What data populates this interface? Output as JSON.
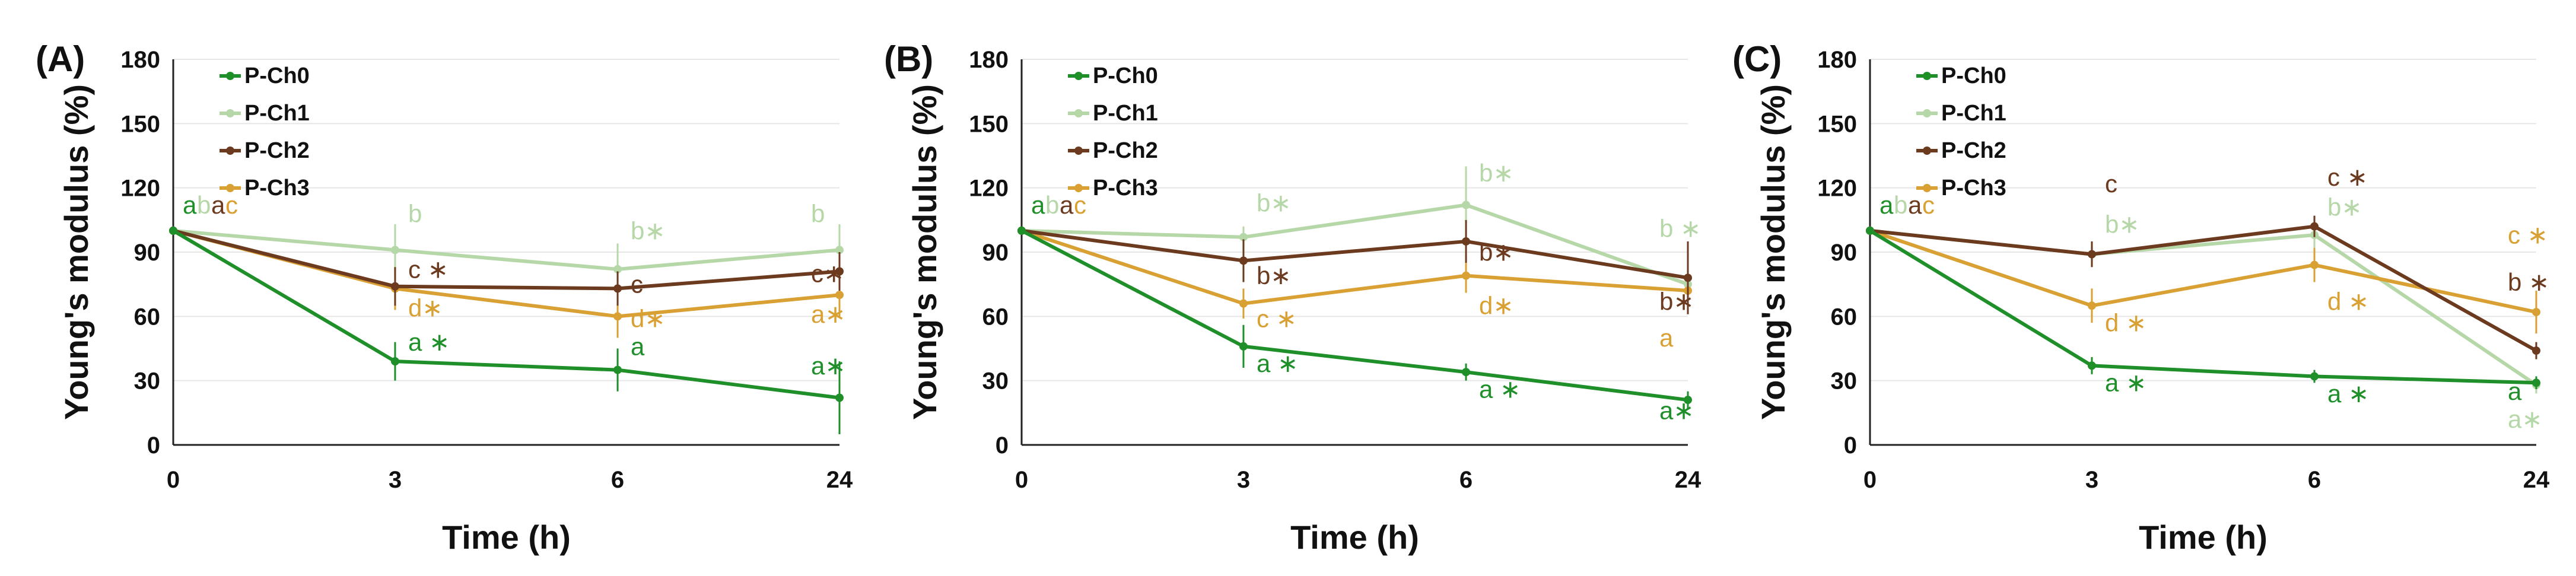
{
  "chart_data": [
    {
      "type": "line",
      "panel_label": "(A)",
      "xlabel": "Time (h)",
      "ylabel": "Young's modulus (%)",
      "ylim": [
        0,
        180
      ],
      "yticks": [
        "0",
        "30",
        "60",
        "90",
        "120",
        "150",
        "180"
      ],
      "x": [
        "0",
        "3",
        "6",
        "24"
      ],
      "grid": true,
      "legend_position": "top-left",
      "series": [
        {
          "name": "P-Ch0",
          "color": "#1f8f2a",
          "marker": "diamond",
          "values": [
            100,
            39,
            35,
            22
          ],
          "errors": [
            0,
            9,
            10,
            17
          ]
        },
        {
          "name": "P-Ch1",
          "color": "#b6d7a8",
          "marker": "circle",
          "values": [
            100,
            91,
            82,
            91
          ],
          "errors": [
            0,
            12,
            12,
            12
          ]
        },
        {
          "name": "P-Ch2",
          "color": "#6b3a1f",
          "marker": "triangle",
          "values": [
            100,
            74,
            73,
            81
          ],
          "errors": [
            0,
            9,
            8,
            9
          ]
        },
        {
          "name": "P-Ch3",
          "color": "#d9a033",
          "marker": "dash",
          "values": [
            100,
            73,
            60,
            70
          ],
          "errors": [
            0,
            10,
            10,
            10
          ]
        }
      ],
      "annotations": [
        {
          "text": "a",
          "series": 0,
          "xi": 0,
          "slot": 0
        },
        {
          "text": "b",
          "series": 1,
          "xi": 0,
          "slot": 1
        },
        {
          "text": "a",
          "series": 2,
          "xi": 0,
          "slot": 2
        },
        {
          "text": "c",
          "series": 3,
          "xi": 0,
          "slot": 3
        },
        {
          "text": "b",
          "series": 1,
          "xi": 1,
          "y": 104
        },
        {
          "text": "c ∗",
          "series": 2,
          "xi": 1,
          "y": 78
        },
        {
          "text": "d∗",
          "series": 3,
          "xi": 1,
          "y": 60
        },
        {
          "text": "a ∗",
          "series": 0,
          "xi": 1,
          "y": 44
        },
        {
          "text": "b∗",
          "series": 1,
          "xi": 2,
          "y": 96
        },
        {
          "text": "c",
          "series": 2,
          "xi": 2,
          "y": 71
        },
        {
          "text": "d∗",
          "series": 3,
          "xi": 2,
          "y": 55
        },
        {
          "text": "a",
          "series": 0,
          "xi": 2,
          "y": 42
        },
        {
          "text": "b",
          "series": 1,
          "xi": 3,
          "y": 104
        },
        {
          "text": "c∗",
          "series": 2,
          "xi": 3,
          "y": 76
        },
        {
          "text": "a∗",
          "series": 3,
          "xi": 3,
          "y": 57
        },
        {
          "text": "a∗",
          "series": 0,
          "xi": 3,
          "y": 33
        }
      ]
    },
    {
      "type": "line",
      "panel_label": "(B)",
      "xlabel": "Time (h)",
      "ylabel": "Young's modulus (%)",
      "ylim": [
        0,
        180
      ],
      "yticks": [
        "0",
        "30",
        "60",
        "90",
        "120",
        "150",
        "180"
      ],
      "x": [
        "0",
        "3",
        "6",
        "24"
      ],
      "grid": true,
      "legend_position": "top-left",
      "series": [
        {
          "name": "P-Ch0",
          "color": "#1f8f2a",
          "marker": "diamond",
          "values": [
            100,
            46,
            34,
            21
          ],
          "errors": [
            0,
            10,
            4,
            4
          ]
        },
        {
          "name": "P-Ch1",
          "color": "#b6d7a8",
          "marker": "circle",
          "values": [
            100,
            97,
            112,
            75
          ],
          "errors": [
            0,
            5,
            18,
            5
          ]
        },
        {
          "name": "P-Ch2",
          "color": "#6b3a1f",
          "marker": "triangle",
          "values": [
            100,
            86,
            95,
            78
          ],
          "errors": [
            0,
            10,
            10,
            17
          ]
        },
        {
          "name": "P-Ch3",
          "color": "#d9a033",
          "marker": "dash",
          "values": [
            100,
            66,
            79,
            72
          ],
          "errors": [
            0,
            7,
            8,
            10
          ]
        }
      ],
      "annotations": [
        {
          "text": "a",
          "series": 0,
          "xi": 0,
          "slot": 0
        },
        {
          "text": "b",
          "series": 1,
          "xi": 0,
          "slot": 1
        },
        {
          "text": "a",
          "series": 2,
          "xi": 0,
          "slot": 2
        },
        {
          "text": "c",
          "series": 3,
          "xi": 0,
          "slot": 3
        },
        {
          "text": "b∗",
          "series": 1,
          "xi": 1,
          "y": 109
        },
        {
          "text": "b∗",
          "series": 2,
          "xi": 1,
          "y": 75
        },
        {
          "text": "c ∗",
          "series": 3,
          "xi": 1,
          "y": 55
        },
        {
          "text": "a ∗",
          "series": 0,
          "xi": 1,
          "y": 34
        },
        {
          "text": "b∗",
          "series": 1,
          "xi": 2,
          "y": 123
        },
        {
          "text": "b∗",
          "series": 2,
          "xi": 2,
          "y": 86
        },
        {
          "text": "d∗",
          "series": 3,
          "xi": 2,
          "y": 61
        },
        {
          "text": "a ∗",
          "series": 0,
          "xi": 2,
          "y": 22
        },
        {
          "text": "b ∗",
          "series": 1,
          "xi": 3,
          "y": 97
        },
        {
          "text": "b∗",
          "series": 2,
          "xi": 3,
          "y": 63
        },
        {
          "text": "a",
          "series": 3,
          "xi": 3,
          "y": 46
        },
        {
          "text": "a∗",
          "series": 0,
          "xi": 3,
          "y": 12
        }
      ]
    },
    {
      "type": "line",
      "panel_label": "(C)",
      "xlabel": "Time (h)",
      "ylabel": "Young's modulus (%)",
      "ylim": [
        0,
        180
      ],
      "yticks": [
        "0",
        "30",
        "60",
        "90",
        "120",
        "150",
        "180"
      ],
      "x": [
        "0",
        "3",
        "6",
        "24"
      ],
      "grid": true,
      "legend_position": "top-left",
      "series": [
        {
          "name": "P-Ch0",
          "color": "#1f8f2a",
          "marker": "diamond",
          "values": [
            100,
            37,
            32,
            29
          ],
          "errors": [
            0,
            4,
            3,
            3
          ]
        },
        {
          "name": "P-Ch1",
          "color": "#b6d7a8",
          "marker": "circle",
          "values": [
            100,
            89,
            98,
            28
          ],
          "errors": [
            0,
            5,
            6,
            4
          ]
        },
        {
          "name": "P-Ch2",
          "color": "#6b3a1f",
          "marker": "triangle",
          "values": [
            100,
            89,
            102,
            44
          ],
          "errors": [
            0,
            6,
            5,
            4
          ]
        },
        {
          "name": "P-Ch3",
          "color": "#d9a033",
          "marker": "dash",
          "values": [
            100,
            65,
            84,
            62
          ],
          "errors": [
            0,
            8,
            8,
            10
          ]
        }
      ],
      "annotations": [
        {
          "text": "a",
          "series": 0,
          "xi": 0,
          "slot": 0
        },
        {
          "text": "b",
          "series": 1,
          "xi": 0,
          "slot": 1
        },
        {
          "text": "a",
          "series": 2,
          "xi": 0,
          "slot": 2
        },
        {
          "text": "c",
          "series": 3,
          "xi": 0,
          "slot": 3
        },
        {
          "text": "c",
          "series": 2,
          "xi": 1,
          "y": 118
        },
        {
          "text": "b∗",
          "series": 1,
          "xi": 1,
          "y": 99
        },
        {
          "text": "d ∗",
          "series": 3,
          "xi": 1,
          "y": 53
        },
        {
          "text": "a ∗",
          "series": 0,
          "xi": 1,
          "y": 25
        },
        {
          "text": "c ∗",
          "series": 2,
          "xi": 2,
          "y": 121
        },
        {
          "text": "b∗",
          "series": 1,
          "xi": 2,
          "y": 107
        },
        {
          "text": "d ∗",
          "series": 3,
          "xi": 2,
          "y": 63
        },
        {
          "text": "a ∗",
          "series": 0,
          "xi": 2,
          "y": 20
        },
        {
          "text": "c ∗",
          "series": 3,
          "xi": 3,
          "y": 94
        },
        {
          "text": "b ∗",
          "series": 2,
          "xi": 3,
          "y": 72
        },
        {
          "text": "a",
          "series": 0,
          "xi": 3,
          "y": 21
        },
        {
          "text": "a∗",
          "series": 1,
          "xi": 3,
          "y": 8
        }
      ]
    }
  ]
}
